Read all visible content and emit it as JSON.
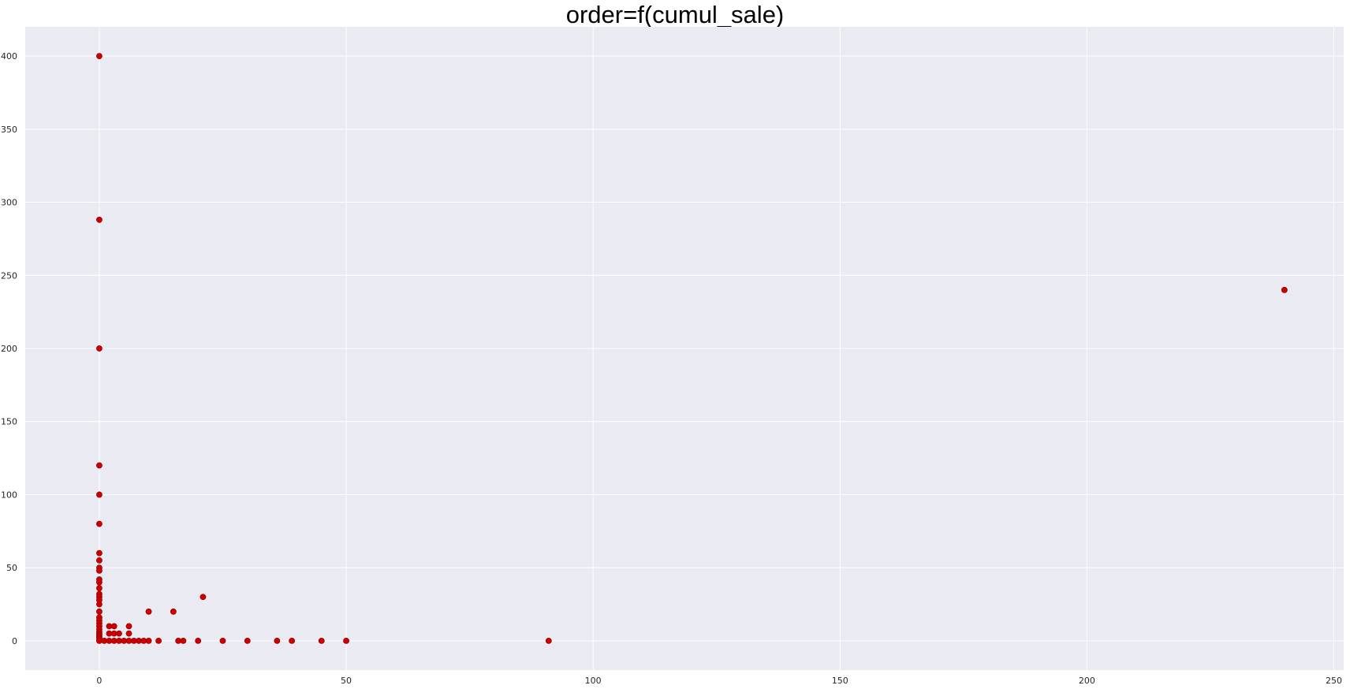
{
  "chart_data": {
    "type": "scatter",
    "title": "order=f(cumul_sale)",
    "xlabel": "",
    "ylabel": "",
    "xlim": [
      -15,
      252
    ],
    "ylim": [
      -20,
      420
    ],
    "x_ticks": [
      0,
      50,
      100,
      150,
      200,
      250
    ],
    "y_ticks": [
      0,
      50,
      100,
      150,
      200,
      250,
      300,
      350,
      400
    ],
    "grid": true,
    "colors": {
      "background": "#EAEAF2",
      "grid": "#FFFFFF",
      "marker": "#CC0000",
      "marker_edge": "#8B0000"
    },
    "series": [
      {
        "points": [
          [
            0,
            400
          ],
          [
            0,
            288
          ],
          [
            0,
            200
          ],
          [
            0,
            120
          ],
          [
            0,
            100
          ],
          [
            0,
            80
          ],
          [
            0,
            60
          ],
          [
            0,
            55
          ],
          [
            0,
            50
          ],
          [
            0,
            48
          ],
          [
            0,
            42
          ],
          [
            0,
            40
          ],
          [
            0,
            36
          ],
          [
            0,
            32
          ],
          [
            0,
            30
          ],
          [
            0,
            28
          ],
          [
            0,
            25
          ],
          [
            0,
            20
          ],
          [
            0,
            16
          ],
          [
            0,
            14
          ],
          [
            0,
            12
          ],
          [
            0,
            10
          ],
          [
            0,
            8
          ],
          [
            0,
            6
          ],
          [
            0,
            5
          ],
          [
            0,
            4
          ],
          [
            0,
            3
          ],
          [
            0,
            2
          ],
          [
            0,
            1
          ],
          [
            0,
            0
          ],
          [
            1,
            0
          ],
          [
            2,
            0
          ],
          [
            2,
            5
          ],
          [
            2,
            10
          ],
          [
            3,
            0
          ],
          [
            3,
            5
          ],
          [
            3,
            10
          ],
          [
            4,
            0
          ],
          [
            4,
            5
          ],
          [
            5,
            0
          ],
          [
            6,
            0
          ],
          [
            6,
            5
          ],
          [
            6,
            10
          ],
          [
            7,
            0
          ],
          [
            8,
            0
          ],
          [
            9,
            0
          ],
          [
            10,
            0
          ],
          [
            10,
            20
          ],
          [
            12,
            0
          ],
          [
            15,
            20
          ],
          [
            16,
            0
          ],
          [
            17,
            0
          ],
          [
            20,
            0
          ],
          [
            21,
            30
          ],
          [
            25,
            0
          ],
          [
            30,
            0
          ],
          [
            36,
            0
          ],
          [
            39,
            0
          ],
          [
            45,
            0
          ],
          [
            50,
            0
          ],
          [
            91,
            0
          ],
          [
            240,
            240
          ]
        ]
      }
    ]
  }
}
